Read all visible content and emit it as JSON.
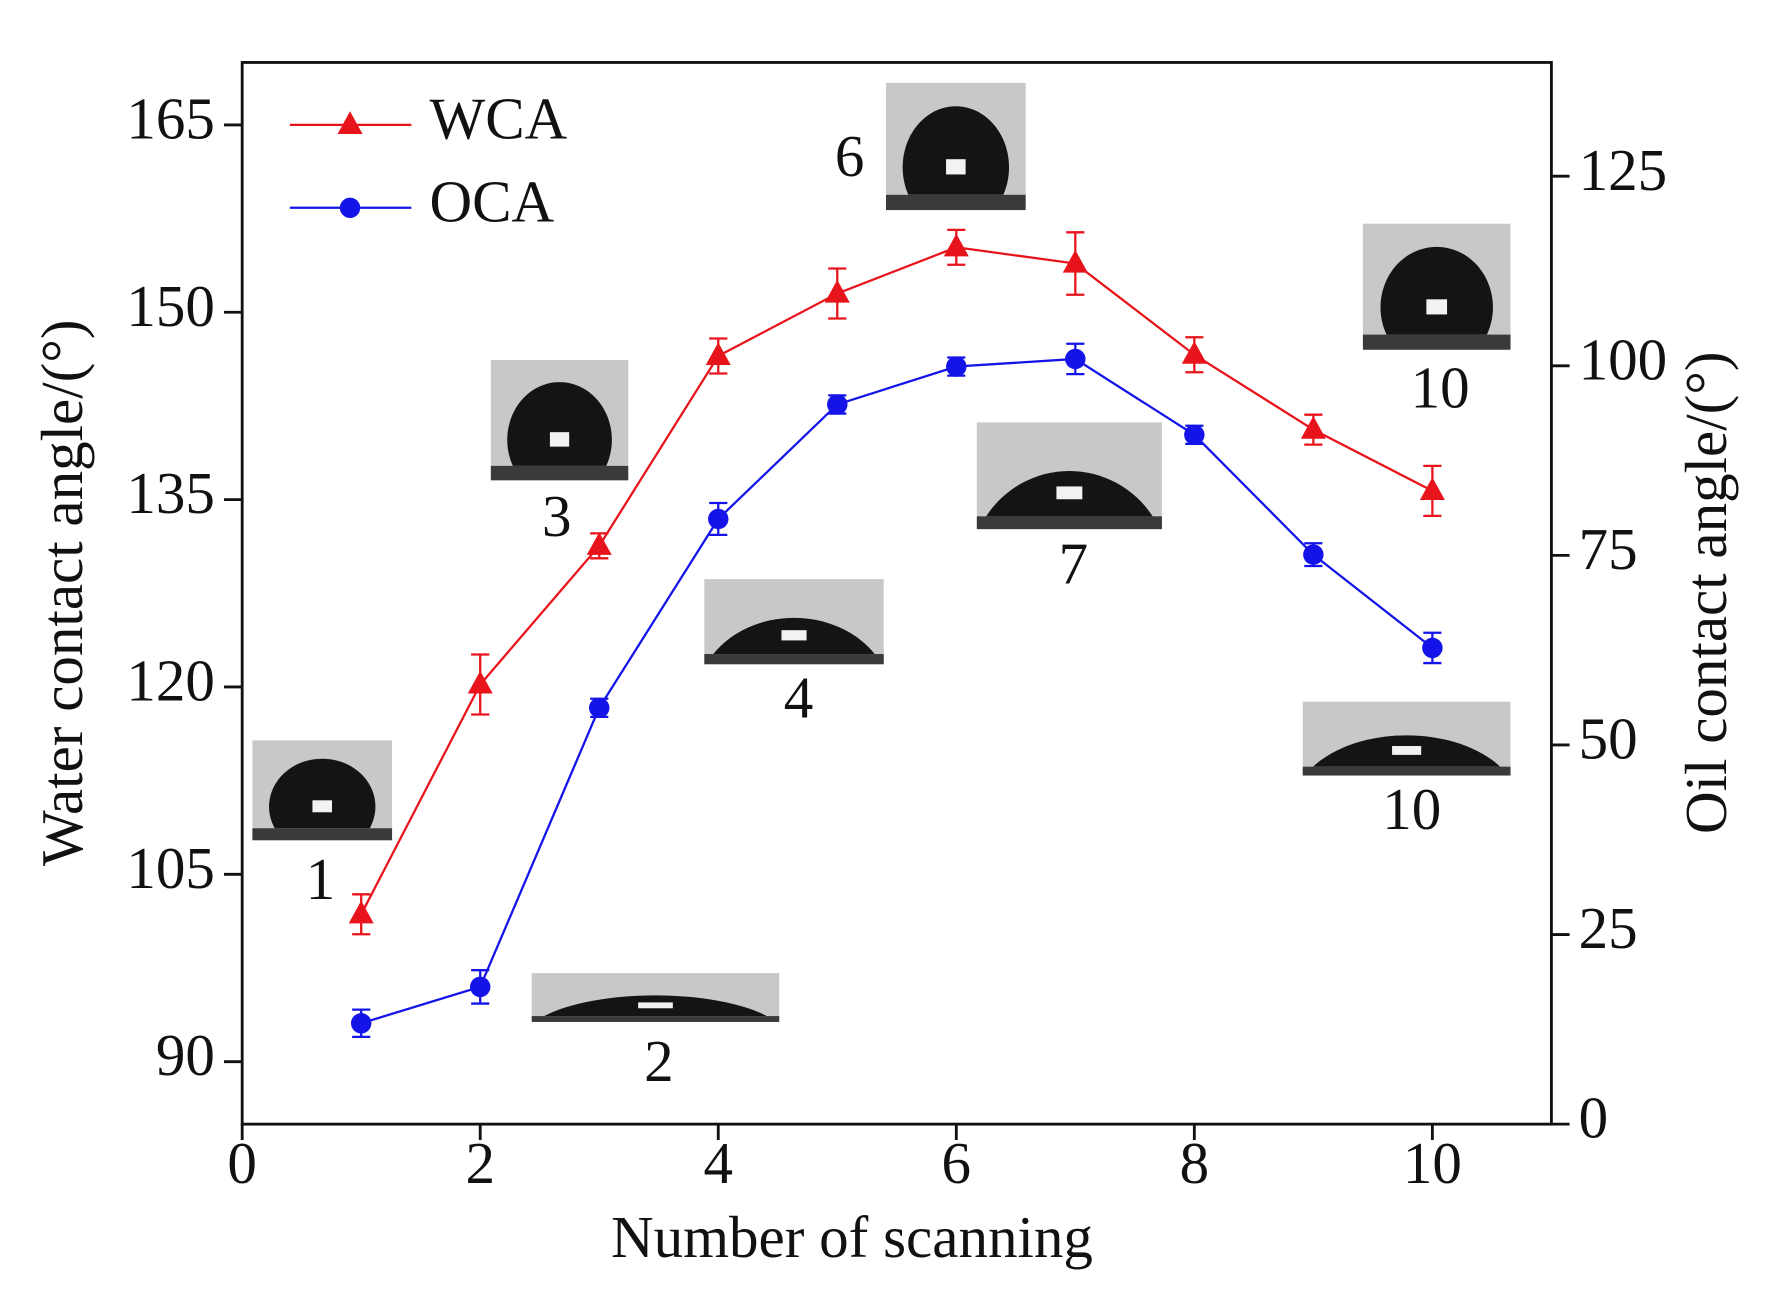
{
  "chart_data": {
    "type": "line",
    "x_label": "Number of scanning",
    "y_label": "Water contact angle/(°)",
    "y2_label": "Oil contact angle/(°)",
    "x": [
      1,
      2,
      3,
      4,
      5,
      6,
      7,
      8,
      9,
      10
    ],
    "xlim": [
      0,
      11
    ],
    "xticks": [
      0,
      2,
      4,
      6,
      8,
      10
    ],
    "ylim": [
      85,
      170
    ],
    "yticks": [
      90,
      105,
      120,
      135,
      150,
      165
    ],
    "y2lim": [
      0,
      140
    ],
    "y2ticks": [
      0,
      25,
      50,
      75,
      100,
      125
    ],
    "legend": "upper left",
    "series": [
      {
        "name": "WCA",
        "color": "#e8141b",
        "marker": "triangle",
        "values": [
          101.8,
          120.2,
          131.3,
          146.5,
          151.5,
          155.2,
          153.9,
          146.6,
          140.6,
          135.7
        ],
        "errors": [
          1.6,
          2.4,
          1.0,
          1.4,
          2.0,
          1.4,
          2.5,
          1.4,
          1.2,
          2.0
        ]
      },
      {
        "name": "OCA",
        "color": "#1414e8",
        "marker": "circle",
        "axis": "y2",
        "values": [
          13.3,
          18.1,
          54.9,
          79.8,
          94.9,
          99.9,
          100.9,
          90.9,
          75.1,
          62.8
        ],
        "errors": [
          1.8,
          2.2,
          1.2,
          2.1,
          1.2,
          1.2,
          2.0,
          1.2,
          1.5,
          2.0
        ]
      }
    ],
    "annotations": [
      "1",
      "2",
      "3",
      "4",
      "6",
      "7",
      "10",
      "10"
    ]
  }
}
